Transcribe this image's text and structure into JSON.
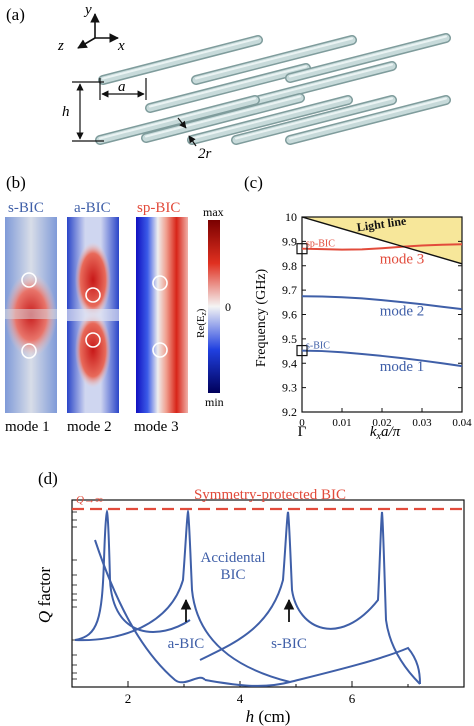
{
  "colors": {
    "rod": "#b9cfcf",
    "rod_stroke": "#7f9c9c",
    "blue": "#3f5fa8",
    "red": "#e24b3b",
    "light_fill": "#f7e79a"
  },
  "panel_a": {
    "label": "(a)",
    "axes": {
      "x": "x",
      "y": "y",
      "z": "z"
    },
    "lattice_label": "a",
    "height_label": "h",
    "radius_label": "2r"
  },
  "panel_b": {
    "label": "(b)",
    "field_titles": [
      "s-BIC",
      "a-BIC",
      "sp-BIC"
    ],
    "mode_labels": [
      "mode 1",
      "mode 2",
      "mode 3"
    ],
    "colorbar": {
      "max": "max",
      "mid": "0",
      "min": "min",
      "label": "Re(E",
      "label_sub": "z",
      "label_end": ")"
    }
  },
  "panel_c": {
    "label": "(c)",
    "ylabel": "Frequency (GHz)",
    "xlabel_k": "k",
    "xlabel_sub": "x",
    "xlabel_rest": "a/π",
    "gamma": "Γ",
    "light_line": "Light line",
    "yticks": [
      "10",
      "9.9",
      "9.8",
      "9.7",
      "9.6",
      "9.5",
      "9.4",
      "9.3",
      "9.2"
    ],
    "xticks": [
      "0",
      "0.01",
      "0.02",
      "0.03",
      "0.04"
    ],
    "mode_labels": [
      "mode 3",
      "mode 2",
      "mode 1"
    ],
    "bic_labels": [
      "sp-BIC",
      "s-BIC"
    ]
  },
  "panel_d": {
    "label": "(d)",
    "ylabel_q": "Q",
    "ylabel_rest": " factor",
    "xlabel_h": "h",
    "xlabel_rest": " (cm)",
    "xticks": [
      "2",
      "4",
      "6"
    ],
    "q_inf": "Q→∞",
    "sym_label": "Symmetry-protected BIC",
    "accidental_1": "Accidental",
    "accidental_2": "BIC",
    "a_bic": "a-BIC",
    "s_bic": "s-BIC"
  },
  "chart_data": {
    "type": "line",
    "xlabel": "kx a/π",
    "ylabel": "Frequency (GHz)",
    "xlim": [
      0,
      0.04
    ],
    "ylim": [
      9.2,
      10.0
    ],
    "x": [
      0,
      0.005,
      0.01,
      0.015,
      0.02,
      0.025,
      0.03,
      0.035,
      0.04
    ],
    "series": [
      {
        "name": "mode 3",
        "values": [
          9.87,
          9.868,
          9.866,
          9.867,
          9.872,
          9.878,
          9.883,
          9.886,
          9.888
        ]
      },
      {
        "name": "mode 2",
        "values": [
          9.675,
          9.674,
          9.671,
          9.666,
          9.659,
          9.651,
          9.642,
          9.632,
          9.622
        ]
      },
      {
        "name": "mode 1",
        "values": [
          9.452,
          9.45,
          9.445,
          9.438,
          9.43,
          9.421,
          9.411,
          9.4,
          9.388
        ]
      },
      {
        "name": "Light line",
        "values": [
          10.0,
          9.976,
          9.952,
          9.928,
          9.904,
          9.88,
          9.856,
          9.832,
          9.808
        ]
      }
    ]
  }
}
